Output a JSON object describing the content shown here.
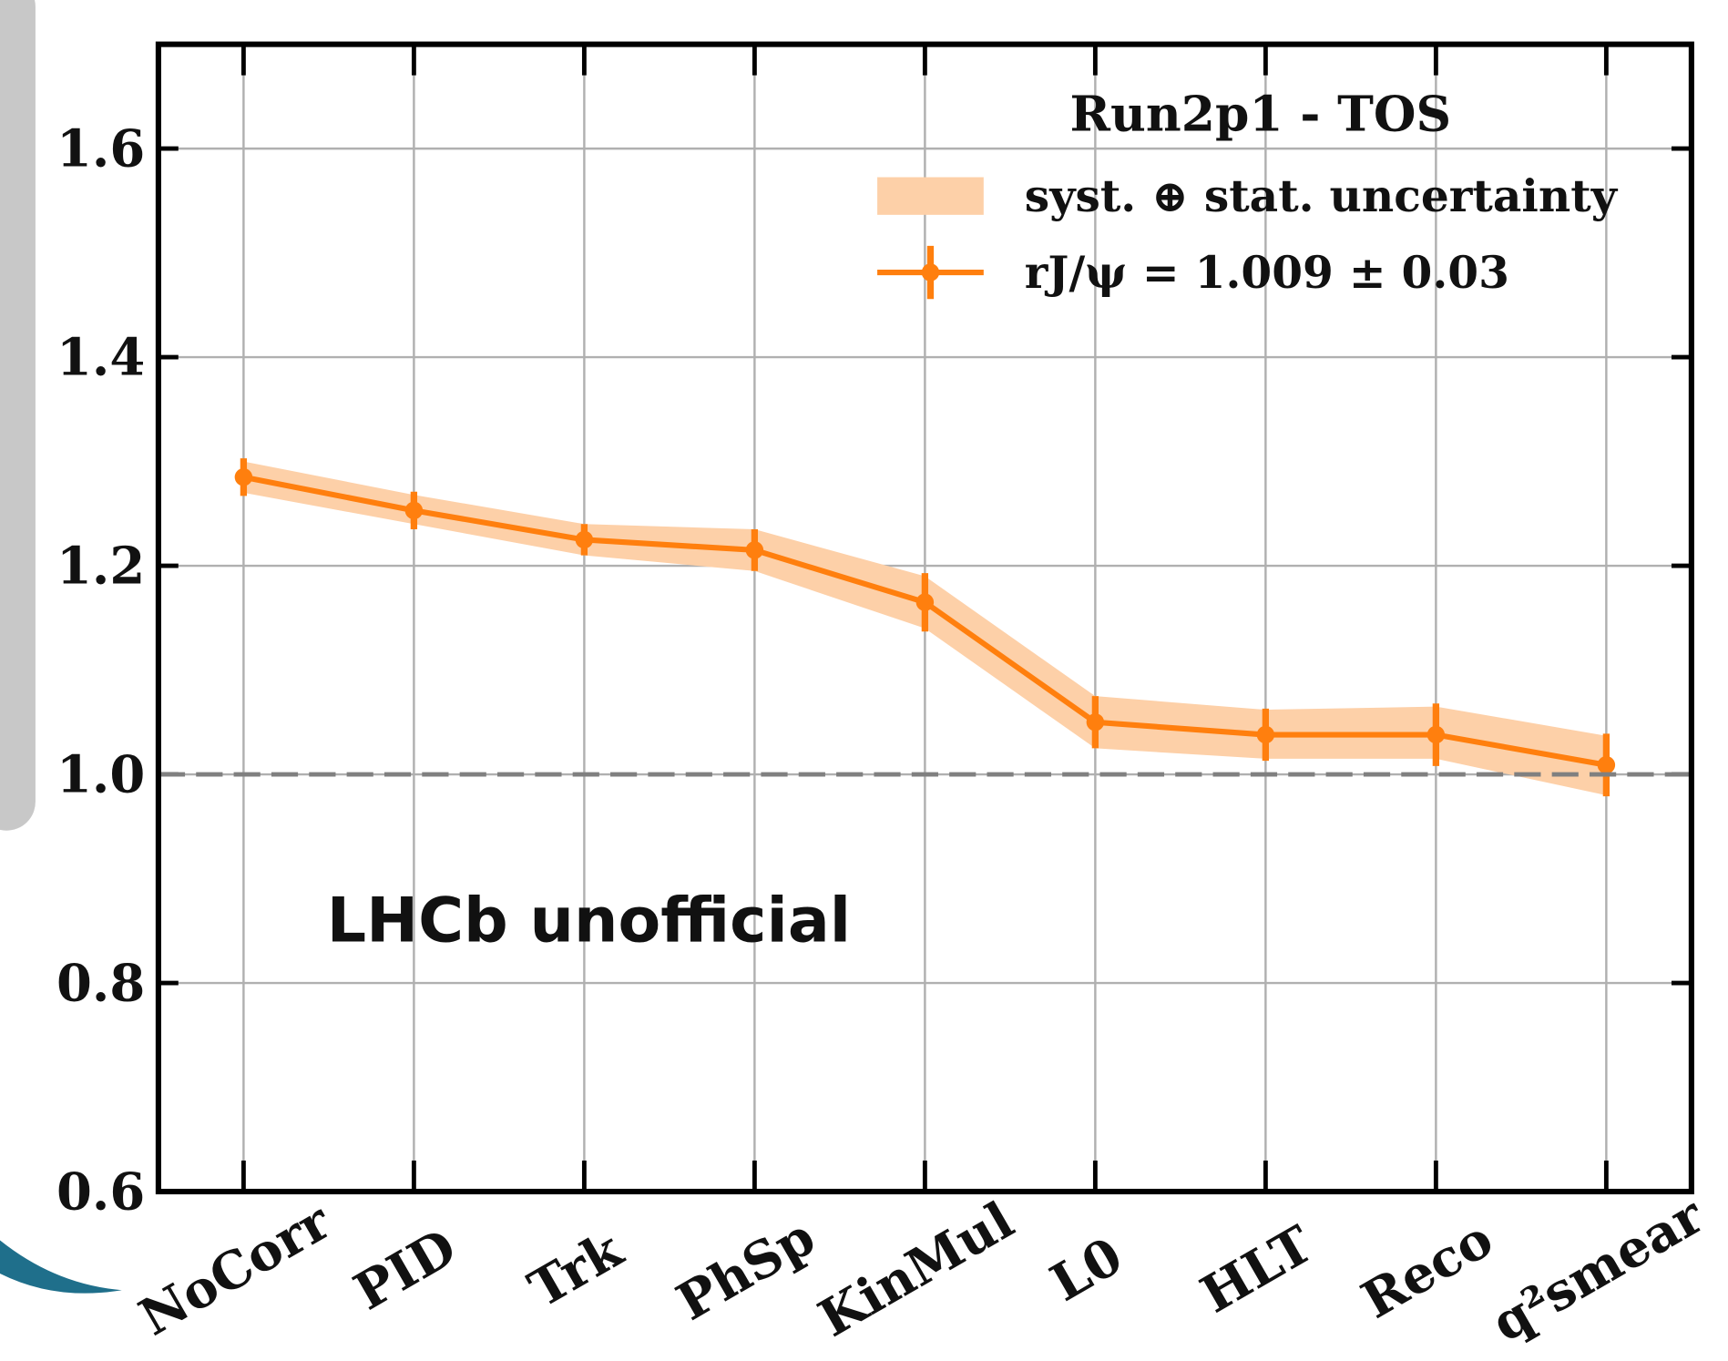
{
  "chart_data": {
    "type": "line",
    "title": "Run2p1 - TOS",
    "annotation": "LHCb unofficial",
    "categories": [
      "NoCorr",
      "PID",
      "Trk",
      "PhSp",
      "KinMul",
      "L0",
      "HLT",
      "Reco",
      "q²smear"
    ],
    "series": [
      {
        "name": "syst. ⊕ stat. uncertainty",
        "kind": "band",
        "color": "#fdd0a8",
        "lower": [
          1.27,
          1.24,
          1.21,
          1.195,
          1.14,
          1.025,
          1.015,
          1.015,
          0.98
        ],
        "upper": [
          1.3,
          1.268,
          1.24,
          1.235,
          1.19,
          1.075,
          1.062,
          1.065,
          1.037
        ]
      },
      {
        "name": "rJ/ψ = 1.009 ± 0.03",
        "kind": "line",
        "color": "#ff7f0e",
        "values": [
          1.285,
          1.253,
          1.225,
          1.215,
          1.165,
          1.05,
          1.038,
          1.038,
          1.009
        ],
        "errors": [
          0.018,
          0.018,
          0.015,
          0.02,
          0.028,
          0.025,
          0.025,
          0.03,
          0.03
        ]
      }
    ],
    "hline": 1.0,
    "ylim": [
      0.6,
      1.7
    ],
    "yticks": [
      {
        "value": 0.6,
        "label": "0.6"
      },
      {
        "value": 0.8,
        "label": "0.8"
      },
      {
        "value": 1.0,
        "label": "1.0"
      },
      {
        "value": 1.2,
        "label": "1.2"
      },
      {
        "value": 1.4,
        "label": "1.4"
      },
      {
        "value": 1.6,
        "label": "1.6"
      }
    ],
    "grid": true
  }
}
